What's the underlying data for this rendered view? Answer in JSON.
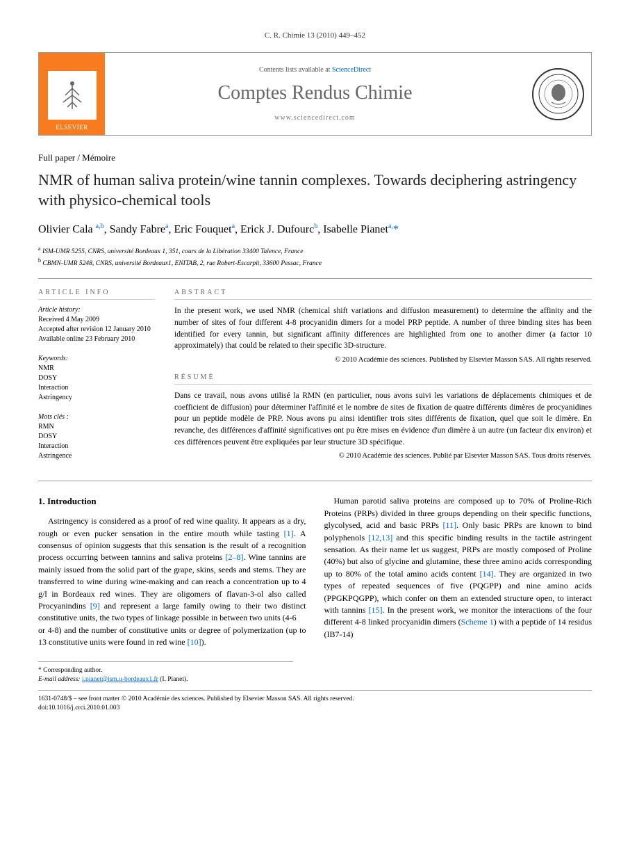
{
  "journal_ref": "C. R. Chimie 13 (2010) 449–452",
  "header": {
    "elsevier": "ELSEVIER",
    "contents_prefix": "Contents lists available at ",
    "contents_link": "ScienceDirect",
    "journal_name": "Comptes Rendus Chimie",
    "url": "www.sciencedirect.com"
  },
  "paper_type": "Full paper / Mémoire",
  "title": "NMR of human saliva protein/wine tannin complexes. Towards deciphering astringency with physico-chemical tools",
  "authors_html": "Olivier Cala <sup>a,b</sup>, Sandy Fabre<sup>a</sup>, Eric Fouquet<sup>a</sup>, Erick J. Dufourc<sup>b</sup>, Isabelle Pianet<sup>a,</sup><span class='star'>*</span>",
  "affiliations": {
    "a": "a ISM-UMR 5255, CNRS, université Bordeaux 1, 351, cours de la Libération 33400 Talence, France",
    "b": "b CBMN-UMR 5248, CNRS, université Bordeaux1, ENITAB, 2, rue Robert-Escarpit, 33600 Pessac, France"
  },
  "article_info": {
    "label": "ARTICLE INFO",
    "history_label": "Article history:",
    "received": "Received 4 May 2009",
    "accepted": "Accepted after revision 12 January 2010",
    "online": "Available online 23 February 2010",
    "keywords_label": "Keywords:",
    "keywords": [
      "NMR",
      "DOSY",
      "Interaction",
      "Astringency"
    ],
    "mots_label": "Mots clés :",
    "mots": [
      "RMN",
      "DOSY",
      "Interaction",
      "Astringence"
    ]
  },
  "abstract": {
    "label": "ABSTRACT",
    "text": "In the present work, we used NMR (chemical shift variations and diffusion measurement) to determine the affinity and the number of sites of four different 4-8 procyanidin dimers for a model PRP peptide. A number of three binding sites has been identified for every tannin, but significant affinity differences are highlighted from one to another dimer (a factor 10 approximately) that could be related to their specific 3D-structure.",
    "copyright": "© 2010 Académie des sciences. Published by Elsevier Masson SAS. All rights reserved."
  },
  "resume": {
    "label": "RÉSUMÉ",
    "text": "Dans ce travail, nous avons utilisé la RMN (en particulier, nous avons suivi les variations de déplacements chimiques et de coefficient de diffusion) pour déterminer l'affinité et le nombre de sites de fixation de quatre différents dimères de procyanidines pour un peptide modèle de PRP. Nous avons pu ainsi identifier trois sites différents de fixation, quel que soit le dimère. En revanche, des différences d'affinité significatives ont pu être mises en évidence d'un dimère à un autre (un facteur dix environ) et ces différences peuvent être expliquées par leur structure 3D spécifique.",
    "copyright": "© 2010 Académie des sciences. Publié par Elsevier Masson SAS. Tous droits réservés."
  },
  "intro": {
    "heading": "1. Introduction",
    "col1": "Astringency is considered as a proof of red wine quality. It appears as a dry, rough or even pucker sensation in the entire mouth while tasting [1]. A consensus of opinion suggests that this sensation is the result of a recognition process occurring between tannins and saliva proteins [2–8]. Wine tannins are mainly issued from the solid part of the grape, skins, seeds and stems. They are transferred to wine during wine-making and can reach a concentration up to 4 g/l in Bordeaux red wines. They are oligomers of flavan-3-ol also called Procyanindins [9] and represent a large family owing to their two distinct constitutive units, the two types of linkage possible in between two units (4-6",
    "col2": "or 4-8) and the number of constitutive units or degree of polymerization (up to 13 constitutive units were found in red wine [10]).",
    "col2b": "Human parotid saliva proteins are composed up to 70% of Proline-Rich Proteins (PRPs) divided in three groups depending on their specific functions, glycolysed, acid and basic PRPs [11]. Only basic PRPs are known to bind polyphenols [12,13] and this specific binding results in the tactile astringent sensation. As their name let us suggest, PRPs are mostly composed of Proline (40%) but also of glycine and glutamine, these three amino acids corresponding up to 80% of the total amino acids content [14]. They are organized in two types of repeated sequences of five (PQGPP) and nine amino acids (PPGKPQGPP), which confer on them an extended structure open, to interact with tannins [15]. In the present work, we monitor the interactions of the four different 4-8 linked procyanidin dimers (Scheme 1) with a peptide of 14 residus (IB7-14)"
  },
  "corr": {
    "label": "* Corresponding author.",
    "email_label": "E-mail address:",
    "email": "i.pianet@ism.u-bordeaux1.fr",
    "name": "(I. Pianet)."
  },
  "footer": {
    "line1": "1631-0748/$ – see front matter © 2010 Académie des sciences. Published by Elsevier Masson SAS. All rights reserved.",
    "line2": "doi:10.1016/j.crci.2010.01.003"
  }
}
